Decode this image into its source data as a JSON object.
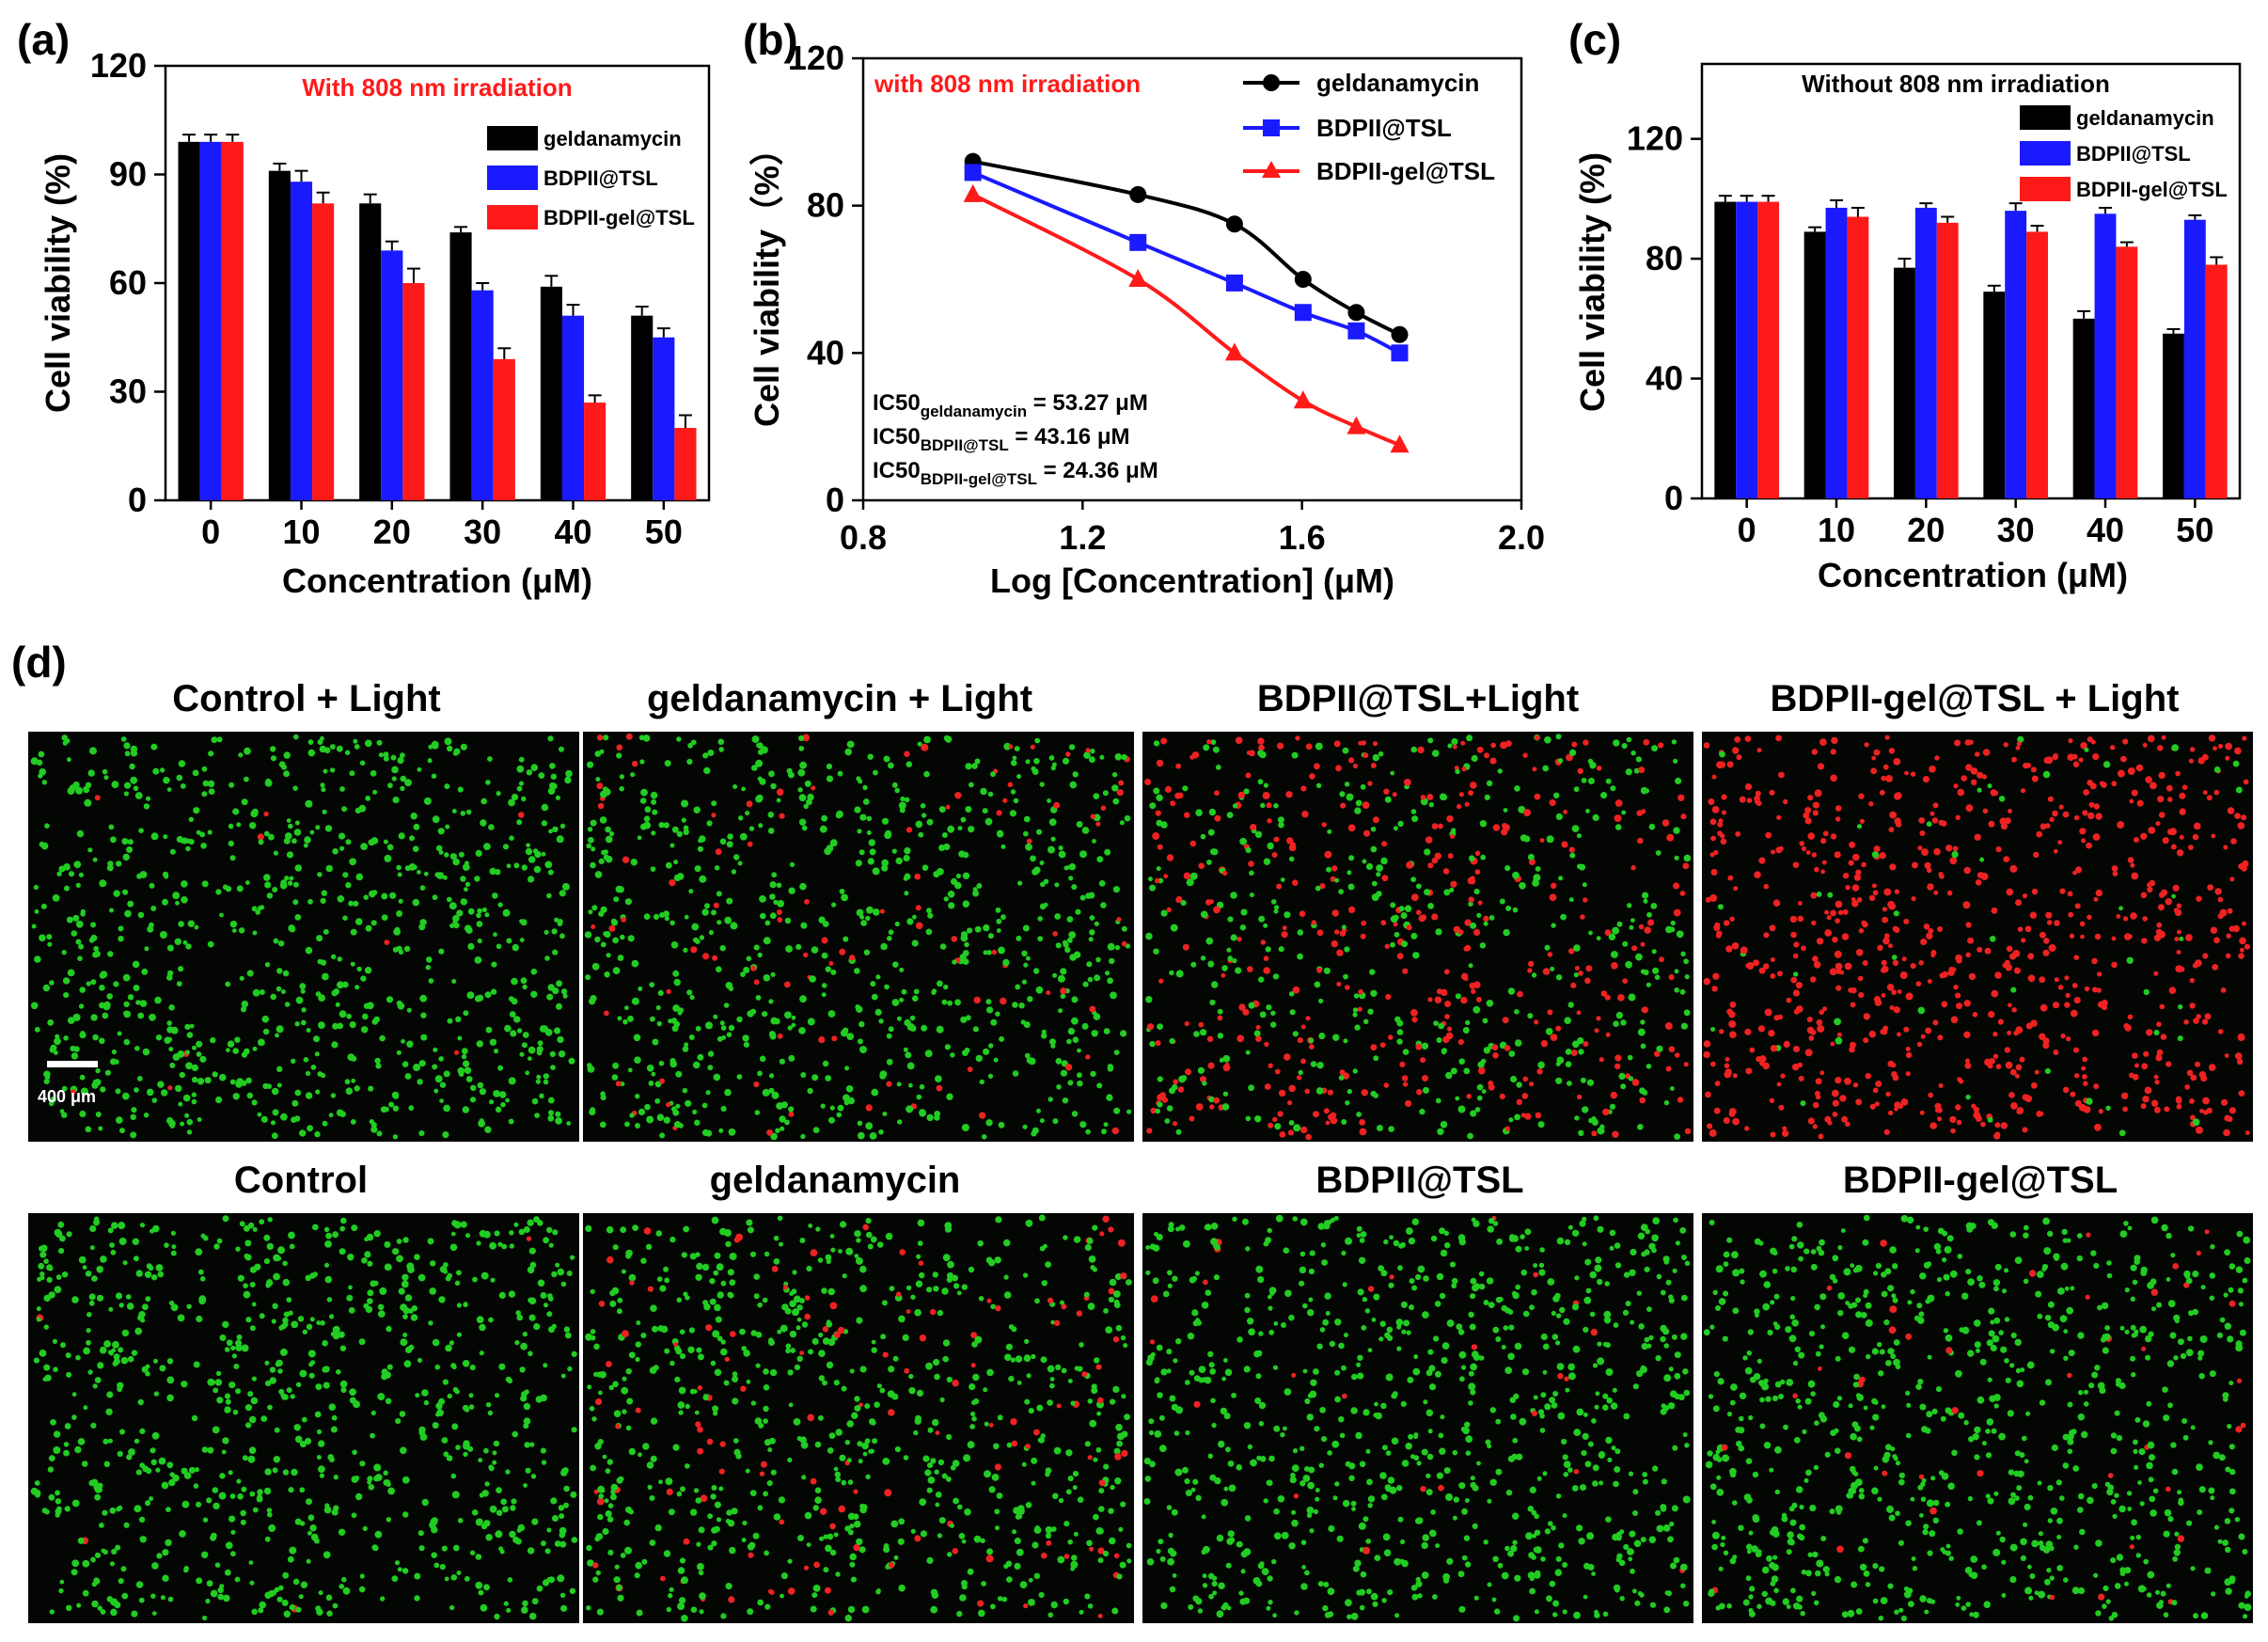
{
  "panel_labels": [
    "(a)",
    "(b)",
    "(c)",
    "(d)"
  ],
  "colors": {
    "geldanamycin": "#000000",
    "bdpii_tsl": "#1a1aff",
    "bdpii_gel_tsl": "#ff1a1a",
    "annotation_red": "#ff1a1a",
    "live_cell": "#22cc22",
    "dead_cell": "#ee2222"
  },
  "chart_data": [
    {
      "id": "a",
      "type": "bar",
      "annotation": "With 808 nm irradiation",
      "xlabel": "Concentration (μM)",
      "ylabel": "Cell viability (%)",
      "ylim": [
        0,
        120
      ],
      "yticks": [
        "0",
        "30",
        "60",
        "90",
        "120"
      ],
      "categories": [
        "0",
        "10",
        "20",
        "30",
        "40",
        "50"
      ],
      "legend_position": "top-right",
      "series": [
        {
          "name": "geldanamycin",
          "color": "#000000",
          "values": [
            99,
            91,
            82,
            74,
            59,
            51
          ],
          "errors": [
            2,
            2,
            2.5,
            1.5,
            3,
            2.5
          ]
        },
        {
          "name": "BDPII@TSL",
          "color": "#1a1aff",
          "values": [
            99,
            88,
            69,
            58,
            51,
            45
          ],
          "errors": [
            2,
            3,
            2.5,
            2,
            3,
            2.5
          ]
        },
        {
          "name": "BDPII-gel@TSL",
          "color": "#ff1a1a",
          "values": [
            99,
            82,
            60,
            39,
            27,
            20
          ],
          "errors": [
            2,
            3,
            4,
            3,
            2,
            3.5
          ]
        }
      ]
    },
    {
      "id": "b",
      "type": "line",
      "annotation": "with 808 nm irradiation",
      "xlabel": "Log [Concentration] (μM)",
      "ylabel": "Cell viability（%）",
      "xlim": [
        0.8,
        2.0
      ],
      "ylim": [
        0,
        120
      ],
      "xticks": [
        "0.8",
        "1.2",
        "1.6",
        "2.0"
      ],
      "yticks": [
        "0",
        "40",
        "80",
        "120"
      ],
      "legend_position": "top-right",
      "x": [
        1.0,
        1.301,
        1.477,
        1.602,
        1.699,
        1.778
      ],
      "series": [
        {
          "name": "geldanamycin",
          "color": "#000000",
          "marker": "circle",
          "values": [
            92,
            83,
            75,
            60,
            51,
            45
          ]
        },
        {
          "name": "BDPII@TSL",
          "color": "#1a1aff",
          "marker": "square",
          "values": [
            89,
            70,
            59,
            51,
            46,
            40
          ]
        },
        {
          "name": "BDPII-gel@TSL",
          "color": "#ff1a1a",
          "marker": "triangle",
          "values": [
            83,
            60,
            40,
            27,
            20,
            15
          ]
        }
      ],
      "ic50": [
        {
          "prefix": "IC50",
          "sub": "geldanamycin",
          "value": " = 53.27 μM"
        },
        {
          "prefix": "IC50",
          "sub": "BDPII@TSL",
          "value": " = 43.16 μM"
        },
        {
          "prefix": "IC50",
          "sub": "BDPII-gel@TSL",
          "value": " = 24.36 μM"
        }
      ]
    },
    {
      "id": "c",
      "type": "bar",
      "annotation": "Without 808 nm irradiation",
      "xlabel": "Concentration (μM)",
      "ylabel": "Cell viability (%)",
      "ylim": [
        0,
        145
      ],
      "yticks": [
        "0",
        "40",
        "80",
        "120"
      ],
      "categories": [
        "0",
        "10",
        "20",
        "30",
        "40",
        "50"
      ],
      "legend_position": "top-right",
      "series": [
        {
          "name": "geldanamycin",
          "color": "#000000",
          "values": [
            99,
            89,
            77,
            69,
            60,
            55
          ],
          "errors": [
            2,
            1.5,
            3,
            2,
            2.5,
            1.5
          ]
        },
        {
          "name": "BDPII@TSL",
          "color": "#1a1aff",
          "values": [
            99,
            97,
            97,
            96,
            95,
            93
          ],
          "errors": [
            2,
            2.5,
            1.5,
            2.5,
            2,
            1.5
          ]
        },
        {
          "name": "BDPII-gel@TSL",
          "color": "#ff1a1a",
          "values": [
            99,
            94,
            92,
            89,
            84,
            78
          ],
          "errors": [
            2,
            3,
            2,
            2,
            1.5,
            2.5
          ]
        }
      ]
    }
  ],
  "micrographs": {
    "scale_bar": "400 μm",
    "panels": [
      {
        "title": "Control + Light",
        "live_fraction": 0.99
      },
      {
        "title": "geldanamycin  + Light",
        "live_fraction": 0.9
      },
      {
        "title": "BDPII@TSL+Light",
        "live_fraction": 0.5
      },
      {
        "title": "BDPII-gel@TSL  + Light",
        "live_fraction": 0.05
      },
      {
        "title": "Control",
        "live_fraction": 0.995
      },
      {
        "title": "geldanamycin",
        "live_fraction": 0.85
      },
      {
        "title": "BDPII@TSL",
        "live_fraction": 0.97
      },
      {
        "title": "BDPII-gel@TSL",
        "live_fraction": 0.95
      }
    ]
  }
}
